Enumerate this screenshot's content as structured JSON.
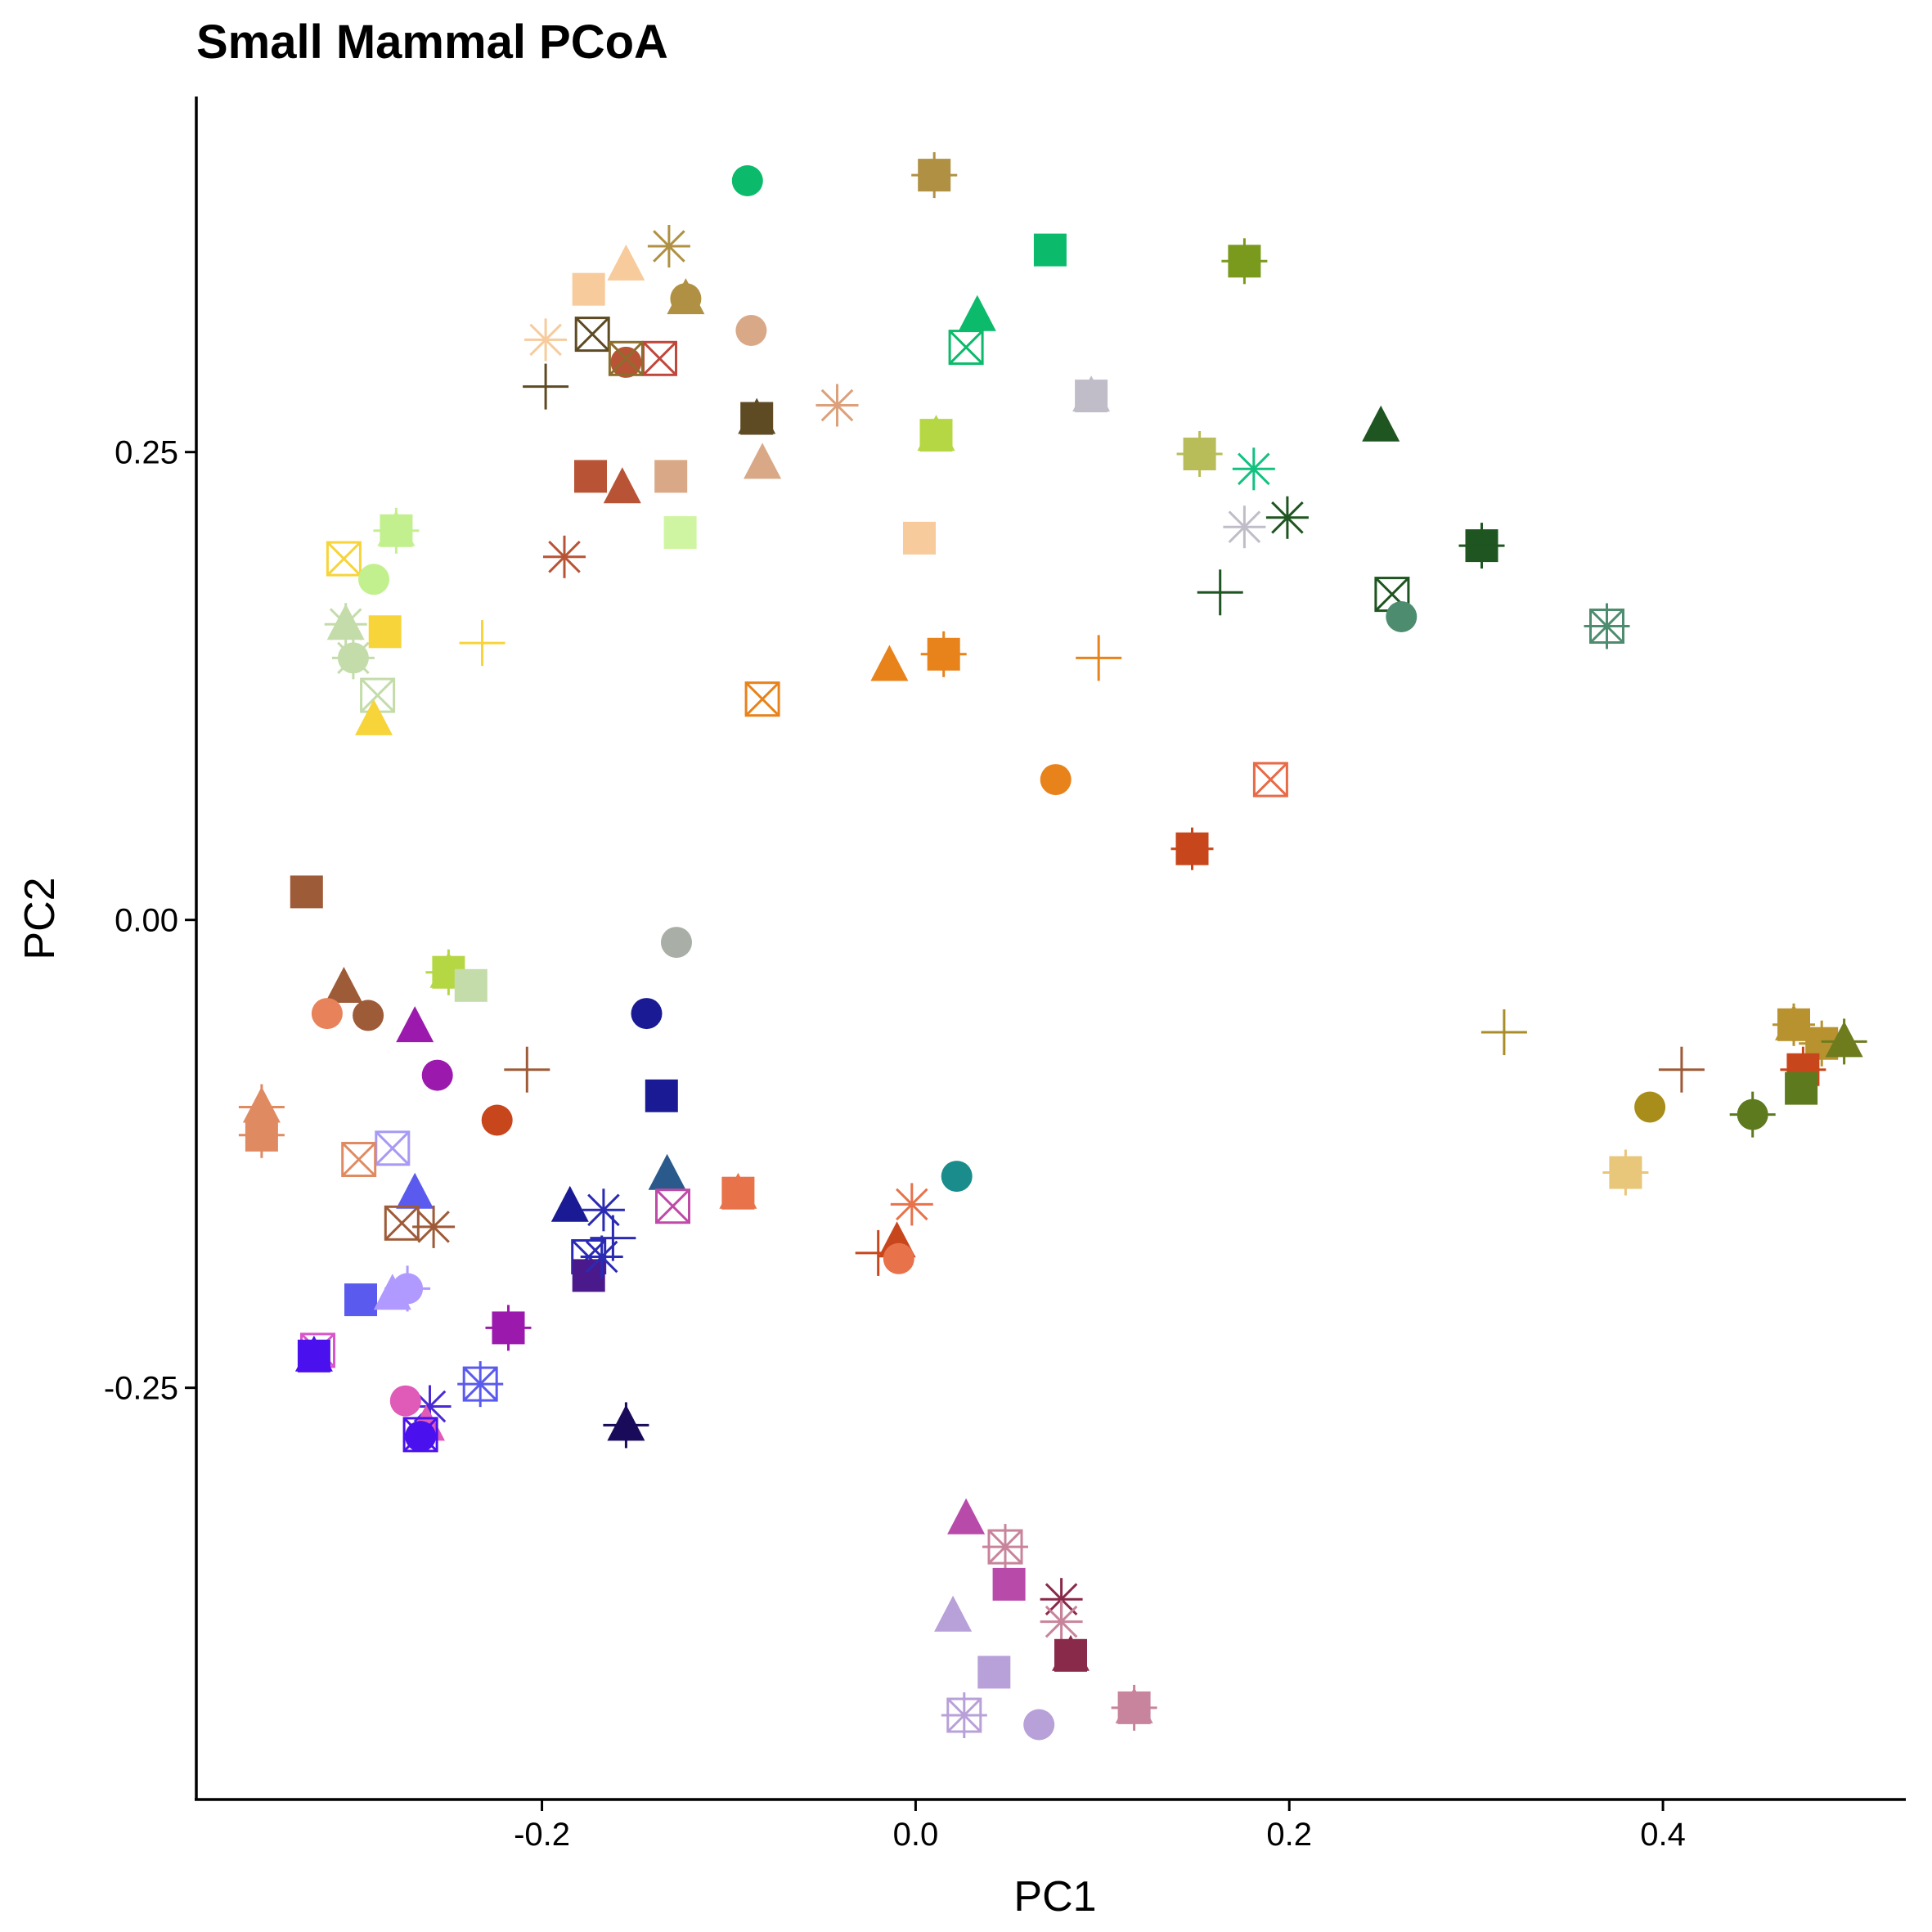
{
  "chart_data": {
    "type": "scatter",
    "title": "Small Mammal PCoA",
    "xlabel": "PC1",
    "ylabel": "PC2",
    "xlim": [
      -0.385,
      0.53
    ],
    "ylim": [
      -0.47,
      0.44
    ],
    "x_ticks": [
      -0.2,
      0.0,
      0.2,
      0.4
    ],
    "x_tick_labels": [
      "-0.2",
      "0.0",
      "0.2",
      "0.4"
    ],
    "y_ticks": [
      -0.25,
      0.0,
      0.25
    ],
    "y_tick_labels": [
      "-0.25",
      "0.00",
      "0.25"
    ],
    "grid": false,
    "legend": "none",
    "points": [
      {
        "x": -0.09,
        "y": 0.395,
        "shape": "circle",
        "color": "#0bba6a"
      },
      {
        "x": 0.01,
        "y": 0.398,
        "shape": "square-plus",
        "color": "#b09143"
      },
      {
        "x": 0.072,
        "y": 0.358,
        "shape": "square",
        "color": "#0bba6a"
      },
      {
        "x": 0.176,
        "y": 0.352,
        "shape": "square-plus",
        "color": "#7a9a1e"
      },
      {
        "x": -0.132,
        "y": 0.36,
        "shape": "asterisk",
        "color": "#b09143"
      },
      {
        "x": -0.155,
        "y": 0.35,
        "shape": "triangle",
        "color": "#f7cb9b"
      },
      {
        "x": -0.175,
        "y": 0.337,
        "shape": "square-circle",
        "color": "#f7cb9b"
      },
      {
        "x": -0.123,
        "y": 0.332,
        "shape": "triangle-circle",
        "color": "#b09143"
      },
      {
        "x": 0.033,
        "y": 0.323,
        "shape": "triangle",
        "color": "#0bba6a"
      },
      {
        "x": -0.088,
        "y": 0.315,
        "shape": "circle",
        "color": "#d9a886"
      },
      {
        "x": -0.173,
        "y": 0.313,
        "shape": "square-x",
        "color": "#5e4a23"
      },
      {
        "x": 0.027,
        "y": 0.306,
        "shape": "square-x",
        "color": "#0bba6a"
      },
      {
        "x": -0.198,
        "y": 0.31,
        "shape": "asterisk",
        "color": "#f7cb9b"
      },
      {
        "x": -0.155,
        "y": 0.298,
        "shape": "circle",
        "color": "#b85435"
      },
      {
        "x": -0.137,
        "y": 0.3,
        "shape": "square-x",
        "color": "#c0473c"
      },
      {
        "x": -0.155,
        "y": 0.3,
        "shape": "square-x",
        "color": "#8c6d2e"
      },
      {
        "x": -0.198,
        "y": 0.285,
        "shape": "plus",
        "color": "#5e4a23"
      },
      {
        "x": 0.094,
        "y": 0.28,
        "shape": "square-triangle",
        "color": "#c0bdc8"
      },
      {
        "x": -0.042,
        "y": 0.275,
        "shape": "asterisk",
        "color": "#dca07a"
      },
      {
        "x": 0.249,
        "y": 0.264,
        "shape": "triangle",
        "color": "#1e5520"
      },
      {
        "x": -0.085,
        "y": 0.268,
        "shape": "square-triangle",
        "color": "#5e4a23"
      },
      {
        "x": 0.011,
        "y": 0.259,
        "shape": "square-triangle-circle",
        "color": "#b6d744"
      },
      {
        "x": 0.152,
        "y": 0.249,
        "shape": "square-plus",
        "color": "#b8bd5a"
      },
      {
        "x": 0.181,
        "y": 0.241,
        "shape": "asterisk",
        "color": "#13c181"
      },
      {
        "x": -0.082,
        "y": 0.244,
        "shape": "triangle",
        "color": "#d9a886"
      },
      {
        "x": -0.174,
        "y": 0.237,
        "shape": "square",
        "color": "#b85435"
      },
      {
        "x": -0.157,
        "y": 0.231,
        "shape": "triangle",
        "color": "#b85435"
      },
      {
        "x": -0.131,
        "y": 0.237,
        "shape": "square",
        "color": "#d9a886"
      },
      {
        "x": 0.199,
        "y": 0.215,
        "shape": "asterisk",
        "color": "#1e5520"
      },
      {
        "x": 0.176,
        "y": 0.21,
        "shape": "asterisk",
        "color": "#c0bdc8"
      },
      {
        "x": -0.126,
        "y": 0.207,
        "shape": "square",
        "color": "#d0f5a2"
      },
      {
        "x": 0.002,
        "y": 0.204,
        "shape": "square",
        "color": "#f7cb9b"
      },
      {
        "x": -0.278,
        "y": 0.208,
        "shape": "square-triangle-plus",
        "color": "#c3f08e"
      },
      {
        "x": -0.188,
        "y": 0.194,
        "shape": "asterisk",
        "color": "#b85435"
      },
      {
        "x": 0.303,
        "y": 0.2,
        "shape": "square-plus",
        "color": "#1e5520"
      },
      {
        "x": -0.306,
        "y": 0.193,
        "shape": "square-x",
        "color": "#f6d43a"
      },
      {
        "x": -0.29,
        "y": 0.182,
        "shape": "circle",
        "color": "#c3f08e"
      },
      {
        "x": 0.163,
        "y": 0.175,
        "shape": "plus",
        "color": "#1e5520"
      },
      {
        "x": 0.255,
        "y": 0.174,
        "shape": "square-x",
        "color": "#1e5520"
      },
      {
        "x": 0.26,
        "y": 0.162,
        "shape": "circle",
        "color": "#4e8c70"
      },
      {
        "x": -0.305,
        "y": 0.158,
        "shape": "triangle-asterisk",
        "color": "#c3dcaa"
      },
      {
        "x": -0.284,
        "y": 0.154,
        "shape": "square-circle",
        "color": "#f6d43a"
      },
      {
        "x": 0.37,
        "y": 0.157,
        "shape": "square-x-plus",
        "color": "#4e8c70"
      },
      {
        "x": -0.232,
        "y": 0.148,
        "shape": "plus",
        "color": "#f6d43a"
      },
      {
        "x": 0.015,
        "y": 0.142,
        "shape": "square-plus",
        "color": "#e8821a"
      },
      {
        "x": 0.098,
        "y": 0.14,
        "shape": "plus",
        "color": "#e8821a"
      },
      {
        "x": -0.014,
        "y": 0.136,
        "shape": "triangle",
        "color": "#e8821a"
      },
      {
        "x": -0.301,
        "y": 0.14,
        "shape": "circle-asterisk",
        "color": "#c3dcaa"
      },
      {
        "x": -0.288,
        "y": 0.12,
        "shape": "square-x",
        "color": "#c3dcaa"
      },
      {
        "x": -0.082,
        "y": 0.118,
        "shape": "square-x",
        "color": "#e8821a"
      },
      {
        "x": -0.29,
        "y": 0.107,
        "shape": "triangle",
        "color": "#f6d43a"
      },
      {
        "x": 0.075,
        "y": 0.075,
        "shape": "circle",
        "color": "#e8821a"
      },
      {
        "x": 0.19,
        "y": 0.075,
        "shape": "square-x",
        "color": "#e86a47"
      },
      {
        "x": 0.148,
        "y": 0.038,
        "shape": "square-asterisk",
        "color": "#c8461b"
      },
      {
        "x": -0.326,
        "y": 0.015,
        "shape": "square",
        "color": "#9e5b38"
      },
      {
        "x": -0.128,
        "y": -0.012,
        "shape": "circle",
        "color": "#a9aea7"
      },
      {
        "x": -0.25,
        "y": -0.028,
        "shape": "square-triangle-plus",
        "color": "#b6d744"
      },
      {
        "x": -0.238,
        "y": -0.035,
        "shape": "square",
        "color": "#c3dcaa"
      },
      {
        "x": -0.306,
        "y": -0.036,
        "shape": "triangle",
        "color": "#9e5b38"
      },
      {
        "x": -0.315,
        "y": -0.05,
        "shape": "circle",
        "color": "#e8825a"
      },
      {
        "x": -0.293,
        "y": -0.051,
        "shape": "circle",
        "color": "#9e5b38"
      },
      {
        "x": -0.144,
        "y": -0.05,
        "shape": "circle",
        "color": "#1a1a94"
      },
      {
        "x": -0.268,
        "y": -0.057,
        "shape": "triangle",
        "color": "#9b1aad"
      },
      {
        "x": 0.315,
        "y": -0.06,
        "shape": "plus",
        "color": "#a88d28"
      },
      {
        "x": 0.47,
        "y": -0.056,
        "shape": "square-triangle-asterisk",
        "color": "#b8922e"
      },
      {
        "x": 0.485,
        "y": -0.066,
        "shape": "square-plus",
        "color": "#b8922e"
      },
      {
        "x": 0.497,
        "y": -0.065,
        "shape": "triangle-plus",
        "color": "#6e7c1e"
      },
      {
        "x": -0.256,
        "y": -0.083,
        "shape": "circle",
        "color": "#9b1aad"
      },
      {
        "x": -0.208,
        "y": -0.08,
        "shape": "plus",
        "color": "#9e5b38"
      },
      {
        "x": 0.41,
        "y": -0.08,
        "shape": "plus",
        "color": "#9e5b38"
      },
      {
        "x": 0.475,
        "y": -0.08,
        "shape": "square-plus",
        "color": "#c8461b"
      },
      {
        "x": -0.136,
        "y": -0.094,
        "shape": "square",
        "color": "#1a1a94"
      },
      {
        "x": 0.474,
        "y": -0.09,
        "shape": "square",
        "color": "#5e7a1e"
      },
      {
        "x": -0.35,
        "y": -0.1,
        "shape": "triangle-plus",
        "color": "#e08a62"
      },
      {
        "x": 0.393,
        "y": -0.1,
        "shape": "circle",
        "color": "#a88d1a"
      },
      {
        "x": -0.224,
        "y": -0.107,
        "shape": "circle",
        "color": "#c8461b"
      },
      {
        "x": 0.448,
        "y": -0.104,
        "shape": "circle-plus",
        "color": "#5e7a1e"
      },
      {
        "x": -0.35,
        "y": -0.115,
        "shape": "square-plus",
        "color": "#e08a62"
      },
      {
        "x": -0.28,
        "y": -0.122,
        "shape": "square-x",
        "color": "#a69af5"
      },
      {
        "x": -0.298,
        "y": -0.128,
        "shape": "square-x",
        "color": "#e08a62"
      },
      {
        "x": 0.022,
        "y": -0.137,
        "shape": "circle",
        "color": "#1a8c8c"
      },
      {
        "x": -0.133,
        "y": -0.136,
        "shape": "triangle",
        "color": "#2a5a8c"
      },
      {
        "x": 0.38,
        "y": -0.135,
        "shape": "square-plus",
        "color": "#e8c67a"
      },
      {
        "x": -0.268,
        "y": -0.146,
        "shape": "triangle",
        "color": "#5a5aee"
      },
      {
        "x": -0.095,
        "y": -0.146,
        "shape": "square-triangle",
        "color": "#e8724a"
      },
      {
        "x": -0.002,
        "y": -0.152,
        "shape": "asterisk",
        "color": "#e8724a"
      },
      {
        "x": -0.185,
        "y": -0.153,
        "shape": "triangle",
        "color": "#1a1a94"
      },
      {
        "x": -0.167,
        "y": -0.155,
        "shape": "asterisk",
        "color": "#2a2ab4"
      },
      {
        "x": -0.13,
        "y": -0.153,
        "shape": "square-x",
        "color": "#c04aa8"
      },
      {
        "x": -0.275,
        "y": -0.162,
        "shape": "square-x",
        "color": "#9e5b38"
      },
      {
        "x": -0.258,
        "y": -0.164,
        "shape": "asterisk",
        "color": "#9e5b38"
      },
      {
        "x": -0.175,
        "y": -0.18,
        "shape": "square-x",
        "color": "#2a2ab4"
      },
      {
        "x": -0.162,
        "y": -0.17,
        "shape": "plus",
        "color": "#2a2ab4"
      },
      {
        "x": -0.01,
        "y": -0.172,
        "shape": "triangle",
        "color": "#c8461b"
      },
      {
        "x": -0.02,
        "y": -0.178,
        "shape": "plus",
        "color": "#c8461b"
      },
      {
        "x": -0.009,
        "y": -0.181,
        "shape": "circle",
        "color": "#e8724a"
      },
      {
        "x": -0.175,
        "y": -0.19,
        "shape": "square",
        "color": "#4a1a8c"
      },
      {
        "x": -0.168,
        "y": -0.18,
        "shape": "asterisk",
        "color": "#2a2ab4"
      },
      {
        "x": -0.297,
        "y": -0.203,
        "shape": "square",
        "color": "#5a5aee"
      },
      {
        "x": -0.272,
        "y": -0.197,
        "shape": "circle-plus",
        "color": "#b09aff"
      },
      {
        "x": -0.28,
        "y": -0.2,
        "shape": "triangle",
        "color": "#b09aff"
      },
      {
        "x": -0.218,
        "y": -0.218,
        "shape": "square-plus",
        "color": "#9b1aad"
      },
      {
        "x": -0.32,
        "y": -0.23,
        "shape": "square-x",
        "color": "#d856c8"
      },
      {
        "x": -0.322,
        "y": -0.233,
        "shape": "square-triangle",
        "color": "#4a10ee"
      },
      {
        "x": -0.233,
        "y": -0.248,
        "shape": "square-x-plus",
        "color": "#5a5aee"
      },
      {
        "x": -0.26,
        "y": -0.26,
        "shape": "asterisk",
        "color": "#4a2ad4"
      },
      {
        "x": -0.273,
        "y": -0.257,
        "shape": "circle",
        "color": "#e05ab8"
      },
      {
        "x": -0.155,
        "y": -0.27,
        "shape": "triangle-plus",
        "color": "#1a0a5a"
      },
      {
        "x": -0.262,
        "y": -0.27,
        "shape": "triangle",
        "color": "#e05ab8"
      },
      {
        "x": -0.265,
        "y": -0.275,
        "shape": "square-x",
        "color": "#4a10ee"
      },
      {
        "x": -0.265,
        "y": -0.276,
        "shape": "circle",
        "color": "#4a10ee"
      },
      {
        "x": 0.027,
        "y": -0.32,
        "shape": "triangle",
        "color": "#b84aaa"
      },
      {
        "x": 0.048,
        "y": -0.335,
        "shape": "square-x-plus",
        "color": "#c8849c"
      },
      {
        "x": 0.05,
        "y": -0.355,
        "shape": "square",
        "color": "#b84aaa"
      },
      {
        "x": 0.078,
        "y": -0.363,
        "shape": "asterisk",
        "color": "#8a2a4a"
      },
      {
        "x": 0.078,
        "y": -0.375,
        "shape": "asterisk",
        "color": "#c8849c"
      },
      {
        "x": 0.02,
        "y": -0.372,
        "shape": "triangle",
        "color": "#b8a0d8"
      },
      {
        "x": 0.042,
        "y": -0.402,
        "shape": "square",
        "color": "#b8a0d8"
      },
      {
        "x": 0.083,
        "y": -0.393,
        "shape": "square-triangle",
        "color": "#8a2a4a"
      },
      {
        "x": 0.117,
        "y": -0.421,
        "shape": "square-triangle-plus",
        "color": "#c8849c"
      },
      {
        "x": 0.026,
        "y": -0.425,
        "shape": "square-x-plus",
        "color": "#b8a0d8"
      },
      {
        "x": 0.066,
        "y": -0.43,
        "shape": "circle",
        "color": "#b8a0d8"
      }
    ]
  }
}
